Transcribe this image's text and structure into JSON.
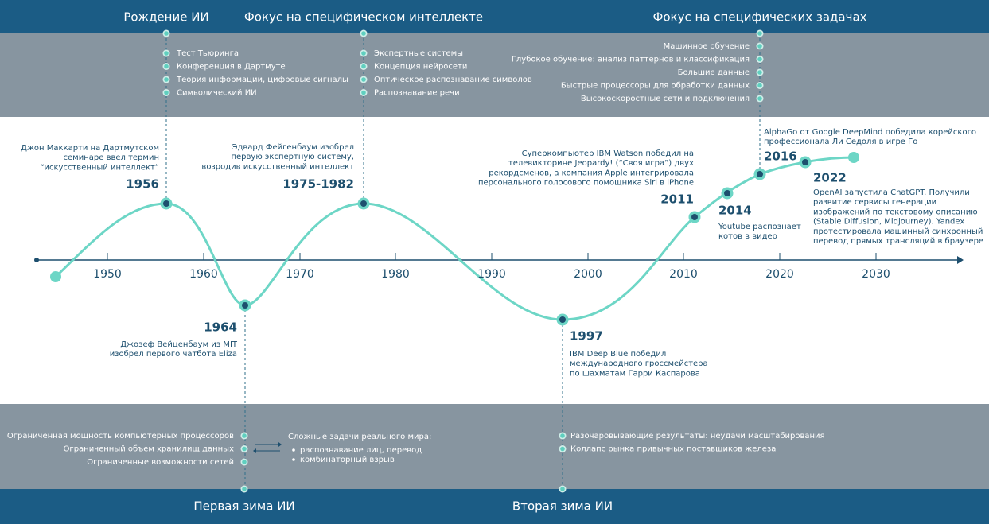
{
  "top_sections": [
    {
      "title": "Рождение ИИ",
      "items": [
        "Тест Тьюринга",
        "Конференция в Дартмуте",
        "Теория информации, цифровые сигналы",
        "Символический ИИ"
      ]
    },
    {
      "title": "Фокус на специфическом интеллекте",
      "items": [
        "Экспертные системы",
        "Концепция нейросети",
        "Оптическое распознавание символов",
        "Распознавание речи"
      ]
    },
    {
      "title": "Фокус на специфических задачах",
      "items": [
        "Машинное обучение",
        "Глубокое обучение: анализ паттернов и классификация",
        "Большие данные",
        "Быстрые процессоры для обработки данных",
        "Высокоскоростные сети и подключения"
      ]
    }
  ],
  "axis": {
    "labels": [
      "1950",
      "1960",
      "1970",
      "1980",
      "1990",
      "2000",
      "2010",
      "2020",
      "2030"
    ]
  },
  "events": [
    {
      "year": "1956",
      "text": [
        "Джон Маккарти на Дартмутском",
        "семинаре ввел термин",
        "“искусственный интеллект”"
      ]
    },
    {
      "year": "1964",
      "text": [
        "Джозеф Вейценбаум из MIT",
        "изобрел первого чатбота Eliza"
      ]
    },
    {
      "year": "1975-1982",
      "text": [
        "Эдвард Фейгенбаум изобрел",
        "первую экспертную систему,",
        "возродив искусственный интеллект"
      ]
    },
    {
      "year": "1997",
      "text": [
        "IBM Deep Blue победил",
        "международного гроссмейстера",
        "по шахматам Гарри Каспарова"
      ]
    },
    {
      "year": "2011",
      "text": [
        "Суперкомпьютер IBM Watson победил на",
        "телевикторине Jeopardy! (“Своя игра”) двух",
        "рекордсменов, а компания Apple интегрировала",
        "персонального голосового помощника Siri в iPhone"
      ]
    },
    {
      "year": "2014",
      "text": [
        "Youtube распознает",
        "котов в видео"
      ]
    },
    {
      "year": "2016",
      "text": [
        "AlphaGo от Google DeepMind победила корейского",
        "профессионала Ли Седоля в игре Го"
      ]
    },
    {
      "year": "2022",
      "text": [
        "OpenAI запустила ChatGPT. Получили",
        "развитие сервисы генерации",
        "изображений по текстовому описанию",
        "(Stable Diffusion, Midjourney). Yandex",
        "протестировала машинный синхронный",
        "перевод прямых трансляций в браузере"
      ]
    }
  ],
  "bottom_sections": [
    {
      "title": "Первая зима ИИ",
      "items": [
        "Ограниченная мощность компьютерных процессоров",
        "Ограниченный объем хранилищ данных",
        "Ограниченные возможности сетей"
      ],
      "details": {
        "title": "Сложные задачи реального мира:",
        "bullets": [
          "распознавание лиц, перевод",
          "комбинаторный взрыв"
        ]
      }
    },
    {
      "title": "Вторая зима ИИ",
      "items": [
        "Разочаровывающие результаты: неудачи масштабирования",
        "Коллапс рынка привычных поставщиков железа"
      ]
    }
  ]
}
